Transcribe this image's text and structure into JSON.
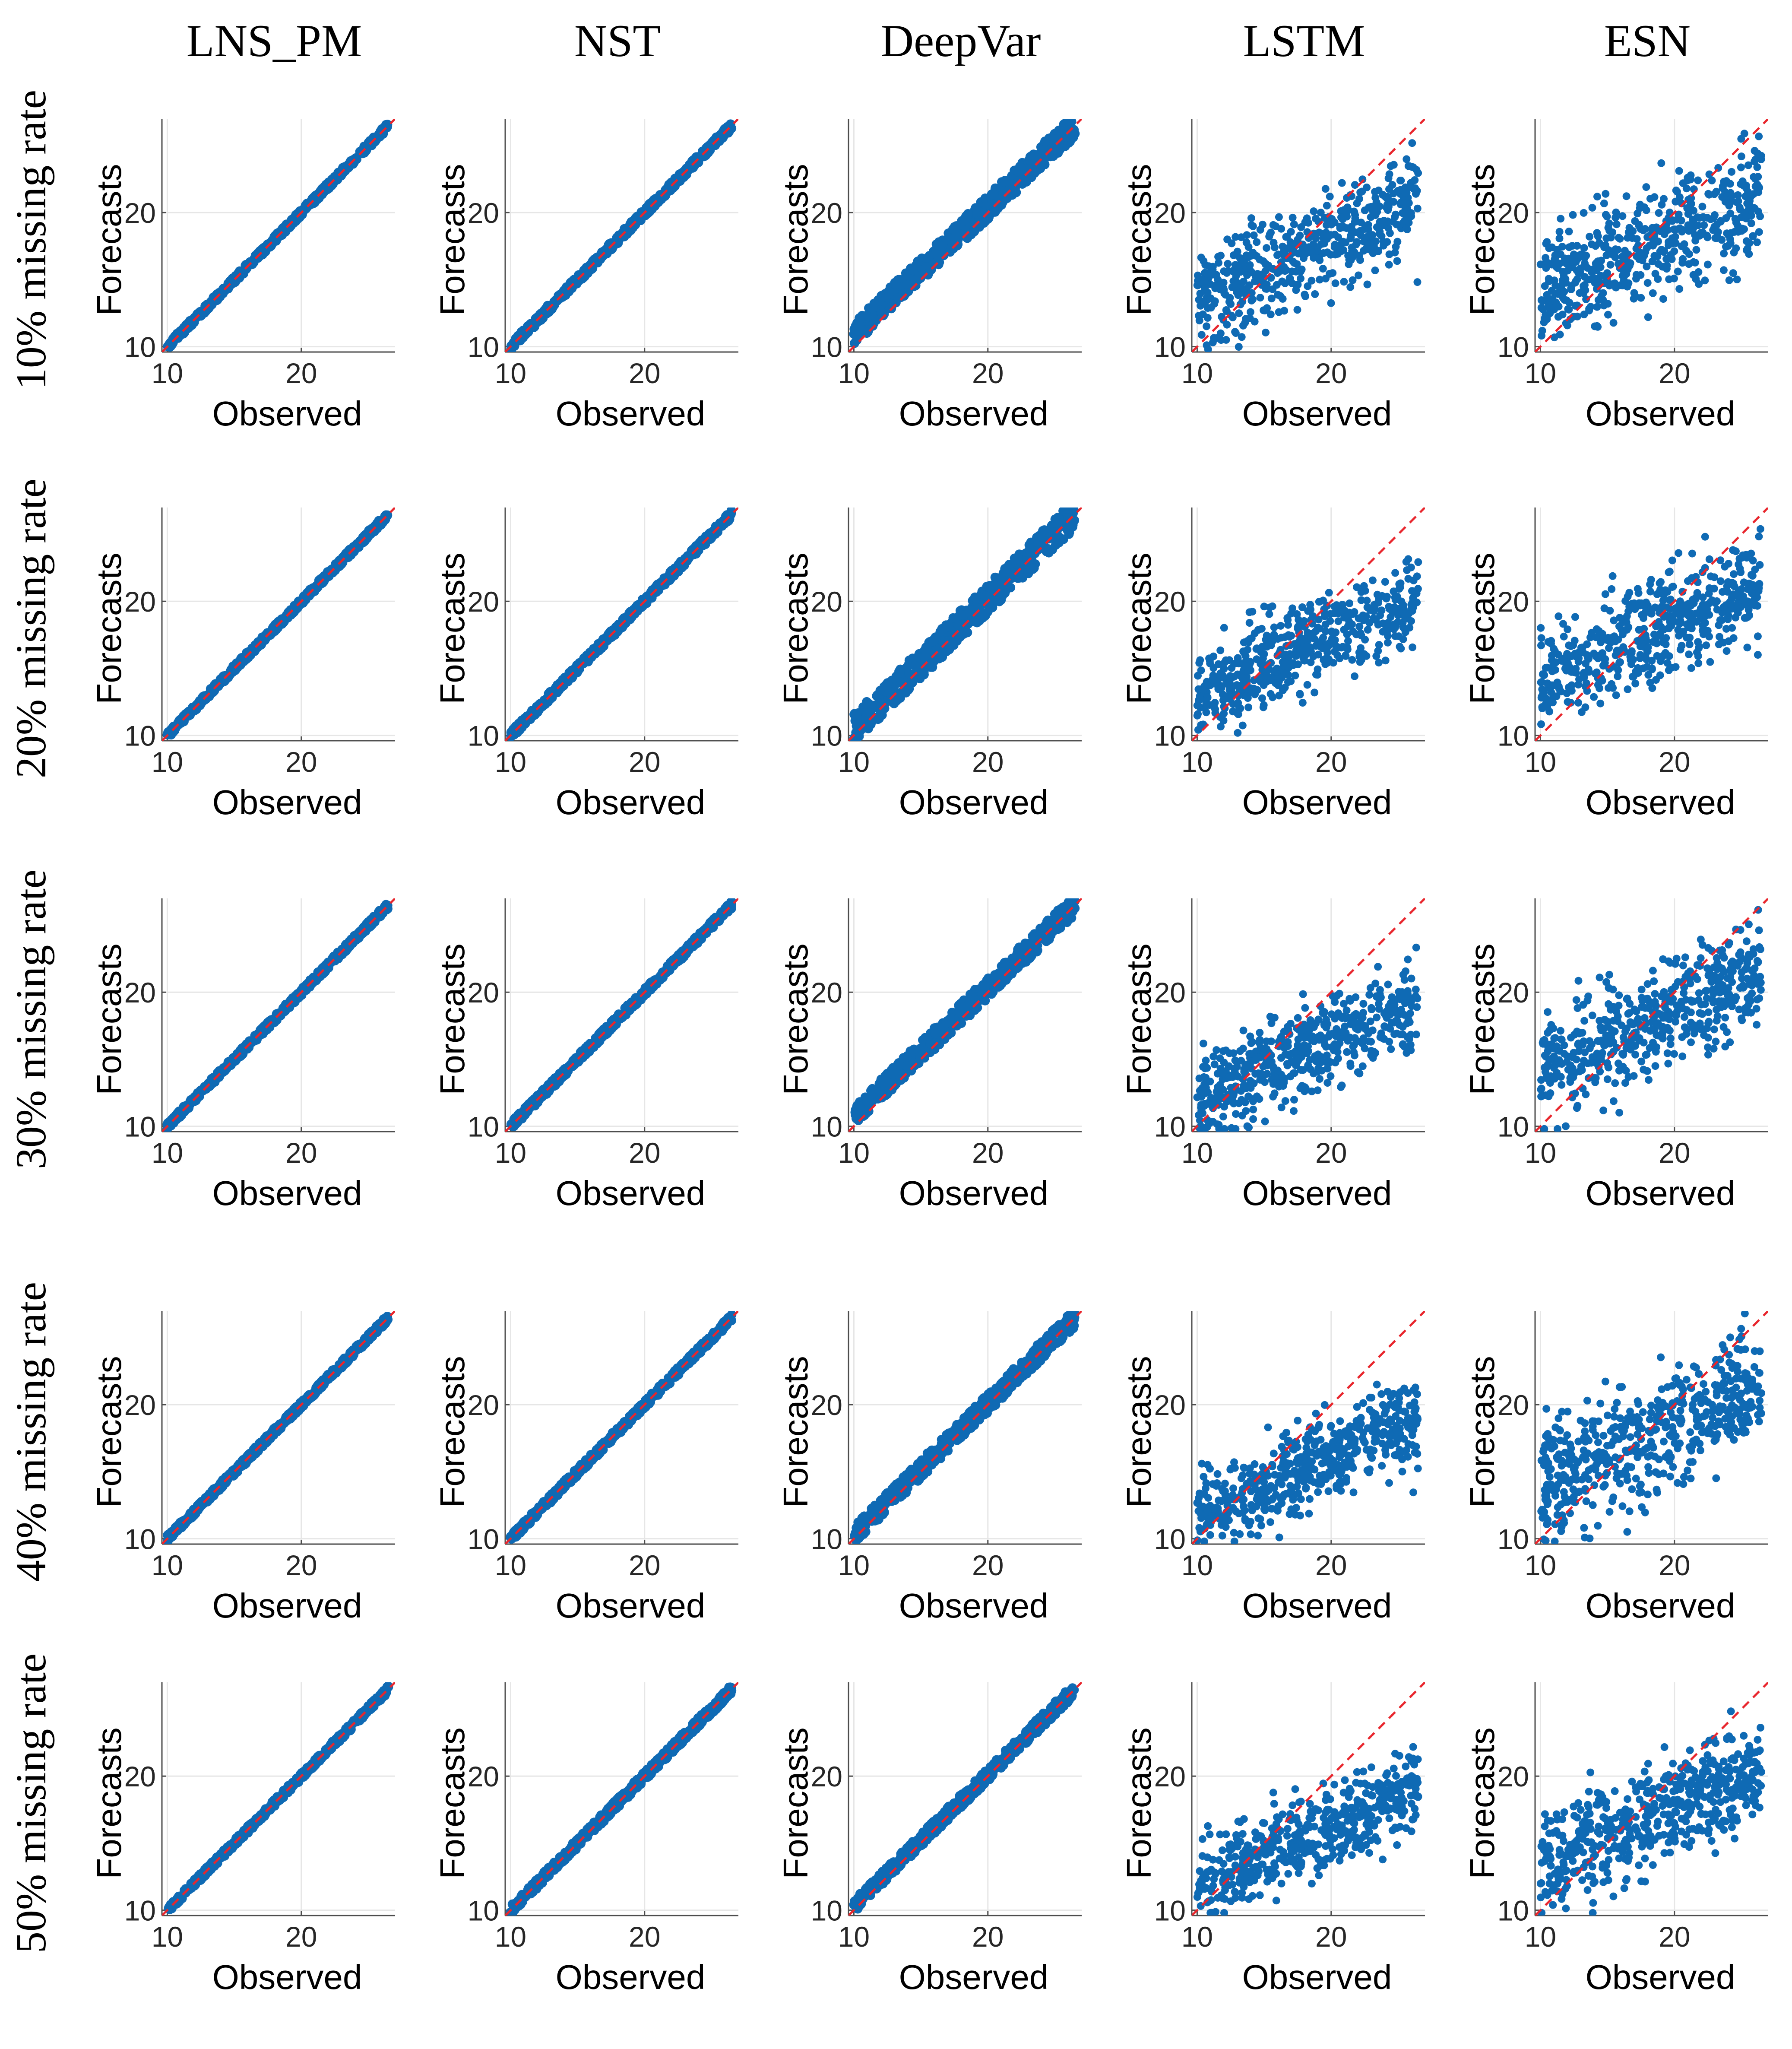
{
  "figure": {
    "column_titles": [
      "LNS_PM",
      "NST",
      "DeepVar",
      "LSTM",
      "ESN"
    ],
    "row_titles": [
      "10% missing rate",
      "20% missing rate",
      "30% missing rate",
      "40% missing rate",
      "50% missing rate"
    ],
    "colors": {
      "points": "#0f6ab4",
      "reference_line": "#e8262d",
      "grid": "#e6e6e6",
      "axis": "#4d4d4d"
    }
  },
  "chart_data": {
    "type": "scatter",
    "layout": "5x5 grid of panels (rows = missing rate, columns = model)",
    "xlabel": "Observed",
    "ylabel": "Forecasts",
    "xlim": [
      9.6,
      27
    ],
    "ylim": [
      9.6,
      27
    ],
    "xticks": [
      10,
      20
    ],
    "yticks": [
      10,
      20
    ],
    "reference_line": {
      "style": "dashed",
      "description": "y = x"
    },
    "grid": true,
    "panels": [
      {
        "row": "10% missing rate",
        "column": "LNS_PM",
        "spread": 0.25,
        "bias": 0
      },
      {
        "row": "10% missing rate",
        "column": "NST",
        "spread": 0.3,
        "bias": 0
      },
      {
        "row": "10% missing rate",
        "column": "DeepVar",
        "spread": 0.9,
        "bias": 1.0
      },
      {
        "row": "10% missing rate",
        "column": "LSTM",
        "spread": 3.2,
        "bias": 0
      },
      {
        "row": "10% missing rate",
        "column": "ESN",
        "spread": 3.6,
        "bias": 0
      },
      {
        "row": "20% missing rate",
        "column": "LNS_PM",
        "spread": 0.25,
        "bias": 0
      },
      {
        "row": "20% missing rate",
        "column": "NST",
        "spread": 0.3,
        "bias": 0
      },
      {
        "row": "20% missing rate",
        "column": "DeepVar",
        "spread": 1.1,
        "bias": 0.5
      },
      {
        "row": "20% missing rate",
        "column": "LSTM",
        "spread": 3.0,
        "bias": -1.0
      },
      {
        "row": "20% missing rate",
        "column": "ESN",
        "spread": 3.6,
        "bias": 0
      },
      {
        "row": "30% missing rate",
        "column": "LNS_PM",
        "spread": 0.25,
        "bias": 0
      },
      {
        "row": "30% missing rate",
        "column": "NST",
        "spread": 0.3,
        "bias": 0
      },
      {
        "row": "30% missing rate",
        "column": "DeepVar",
        "spread": 0.8,
        "bias": 0.8
      },
      {
        "row": "30% missing rate",
        "column": "LSTM",
        "spread": 2.8,
        "bias": -1.5
      },
      {
        "row": "30% missing rate",
        "column": "ESN",
        "spread": 3.6,
        "bias": 0
      },
      {
        "row": "40% missing rate",
        "column": "LNS_PM",
        "spread": 0.25,
        "bias": 0
      },
      {
        "row": "40% missing rate",
        "column": "NST",
        "spread": 0.3,
        "bias": 0
      },
      {
        "row": "40% missing rate",
        "column": "DeepVar",
        "spread": 0.7,
        "bias": 0.3
      },
      {
        "row": "40% missing rate",
        "column": "LSTM",
        "spread": 2.8,
        "bias": -2.0
      },
      {
        "row": "40% missing rate",
        "column": "ESN",
        "spread": 3.6,
        "bias": 0
      },
      {
        "row": "50% missing rate",
        "column": "LNS_PM",
        "spread": 0.25,
        "bias": 0
      },
      {
        "row": "50% missing rate",
        "column": "NST",
        "spread": 0.35,
        "bias": 0
      },
      {
        "row": "50% missing rate",
        "column": "DeepVar",
        "spread": 0.5,
        "bias": 0.3
      },
      {
        "row": "50% missing rate",
        "column": "LSTM",
        "spread": 2.8,
        "bias": -2.0
      },
      {
        "row": "50% missing rate",
        "column": "ESN",
        "spread": 3.6,
        "bias": 0
      }
    ]
  }
}
